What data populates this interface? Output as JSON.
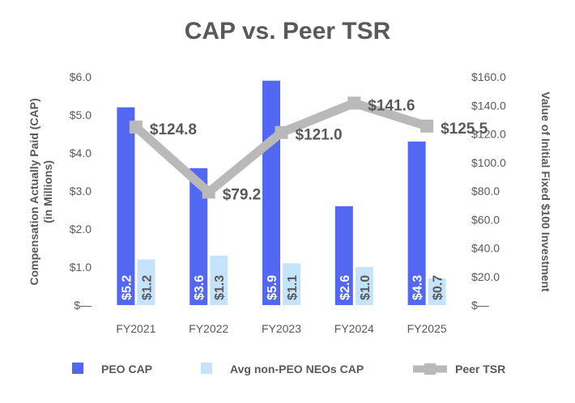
{
  "chart_data": {
    "type": "bar",
    "title": "CAP vs. Peer TSR",
    "categories": [
      "FY2021",
      "FY2022",
      "FY2023",
      "FY2024",
      "FY2025"
    ],
    "series": [
      {
        "name": "PEO CAP",
        "axis": "left",
        "kind": "bar",
        "color": "#5368F2",
        "values": [
          5.2,
          3.6,
          5.9,
          2.6,
          4.3
        ],
        "labels": [
          "$5.2",
          "$3.6",
          "$5.9",
          "$2.6",
          "$4.3"
        ]
      },
      {
        "name": "Avg non-PEO NEOs CAP",
        "axis": "left",
        "kind": "bar",
        "color": "#C5E4FB",
        "values": [
          1.2,
          1.3,
          1.1,
          1.0,
          0.7
        ],
        "labels": [
          "$1.2",
          "$1.3",
          "$1.1",
          "$1.0",
          "$0.7"
        ]
      },
      {
        "name": "Peer TSR",
        "axis": "right",
        "kind": "line",
        "color": "#B9B9B9",
        "values": [
          124.8,
          79.2,
          121.0,
          141.6,
          125.5
        ],
        "labels": [
          "$124.8",
          "$79.2",
          "$121.0",
          "$141.6",
          "$125.5"
        ]
      }
    ],
    "y_left": {
      "label_line1": "Compensation Actually Paid (CAP)",
      "label_line2": "(in Millions)",
      "ylim": [
        0,
        6
      ],
      "ticks": [
        0,
        1,
        2,
        3,
        4,
        5,
        6
      ],
      "tick_labels": [
        "$—",
        "$1.0",
        "$2.0",
        "$3.0",
        "$4.0",
        "$5.0",
        "$6.0"
      ]
    },
    "y_right": {
      "label": "Value of Initial Fixed $100 Investment",
      "ylim": [
        0,
        160
      ],
      "ticks": [
        0,
        20,
        40,
        60,
        80,
        100,
        120,
        140,
        160
      ],
      "tick_labels": [
        "$—",
        "$20.0",
        "$40.0",
        "$60.0",
        "$80.0",
        "$100.0",
        "$120.0",
        "$140.0",
        "$160.0"
      ]
    },
    "legend_position": "bottom",
    "grid": false
  }
}
